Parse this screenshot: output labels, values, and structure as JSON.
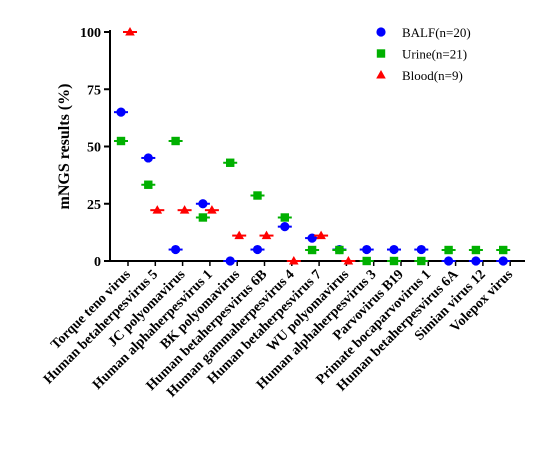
{
  "chart_data": {
    "type": "scatter",
    "title": "",
    "xlabel": "",
    "ylabel": "mNGS results (%)",
    "ylim": [
      0,
      100
    ],
    "yticks": [
      "0",
      "25",
      "50",
      "75",
      "100"
    ],
    "grid": false,
    "legend_position": "top-right",
    "categories": [
      "Torque teno virus",
      "Human betaherpesvirus 5",
      "JC polyomavirus",
      "Human alphaherpesvirus 1",
      "BK polyomavirus",
      "Human betaherpesvirus 6B",
      "Human gammaherpesvirus 4",
      "Human betaherpesvirus 7",
      "WU polyomavirus",
      "Human alphaherpesvirus 3",
      "Parvovirus B19",
      "Primate bocaparvovirus 1",
      "Human betaherpesvirus 6A",
      "Simian virus 12",
      "Volepox virus"
    ],
    "series": [
      {
        "name": "BALF(n=20)",
        "marker": "circle",
        "color": "#0000ff",
        "values": [
          65,
          45,
          5,
          25,
          0,
          5,
          15,
          10,
          5,
          5,
          5,
          5,
          0,
          0,
          0
        ]
      },
      {
        "name": "Urine(n=21)",
        "marker": "square",
        "color": "#00b000",
        "values": [
          52.4,
          33.3,
          52.4,
          19,
          42.9,
          28.6,
          19,
          4.8,
          4.8,
          0,
          0,
          0,
          4.8,
          4.8,
          4.8
        ]
      },
      {
        "name": "Blood(n=9)",
        "marker": "triangle",
        "color": "#ff0000",
        "values": [
          100,
          22.2,
          22.2,
          22.2,
          11.1,
          11.1,
          0,
          11.1,
          0,
          null,
          null,
          null,
          null,
          null,
          null
        ]
      }
    ]
  }
}
